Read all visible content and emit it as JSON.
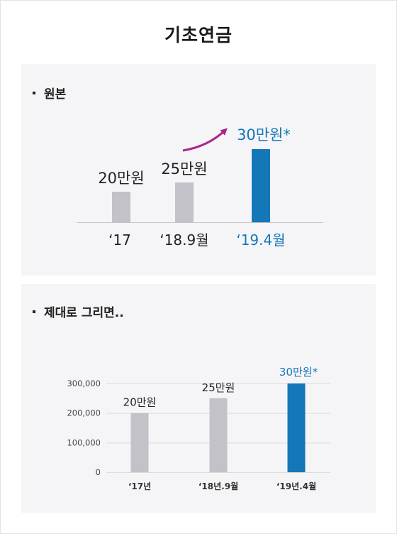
{
  "title": "기초연금",
  "sections": [
    {
      "label": "원본"
    },
    {
      "label": "제대로 그리면.."
    }
  ],
  "colors": {
    "bar_gray": "#c2c2c8",
    "bar_blue": "#1478b8",
    "arrow": "#a8288a",
    "panel_bg": "#f5f5f7",
    "grid": "#dcdcdc"
  },
  "chart_data": [
    {
      "type": "bar",
      "title": "",
      "categories": [
        "‘17",
        "‘18.9월",
        "‘19.4월"
      ],
      "values": [
        200000,
        250000,
        300000
      ],
      "data_labels": [
        "20만원",
        "25만원",
        "30만원*"
      ],
      "highlight_index": 2,
      "arrow": "from '18.9월 to '19.4월",
      "yaxis": "none"
    },
    {
      "type": "bar",
      "title": "",
      "categories": [
        "‘17년",
        "‘18년.9월",
        "‘19년.4월"
      ],
      "values": [
        200000,
        250000,
        300000
      ],
      "data_labels": [
        "20만원",
        "25만원",
        "30만원*"
      ],
      "highlight_index": 2,
      "ylim": [
        0,
        300000
      ],
      "yticks": [
        0,
        100000,
        200000,
        300000
      ],
      "ytick_labels": [
        "0",
        "100,000",
        "200,000",
        "300,000"
      ],
      "grid": true
    }
  ]
}
